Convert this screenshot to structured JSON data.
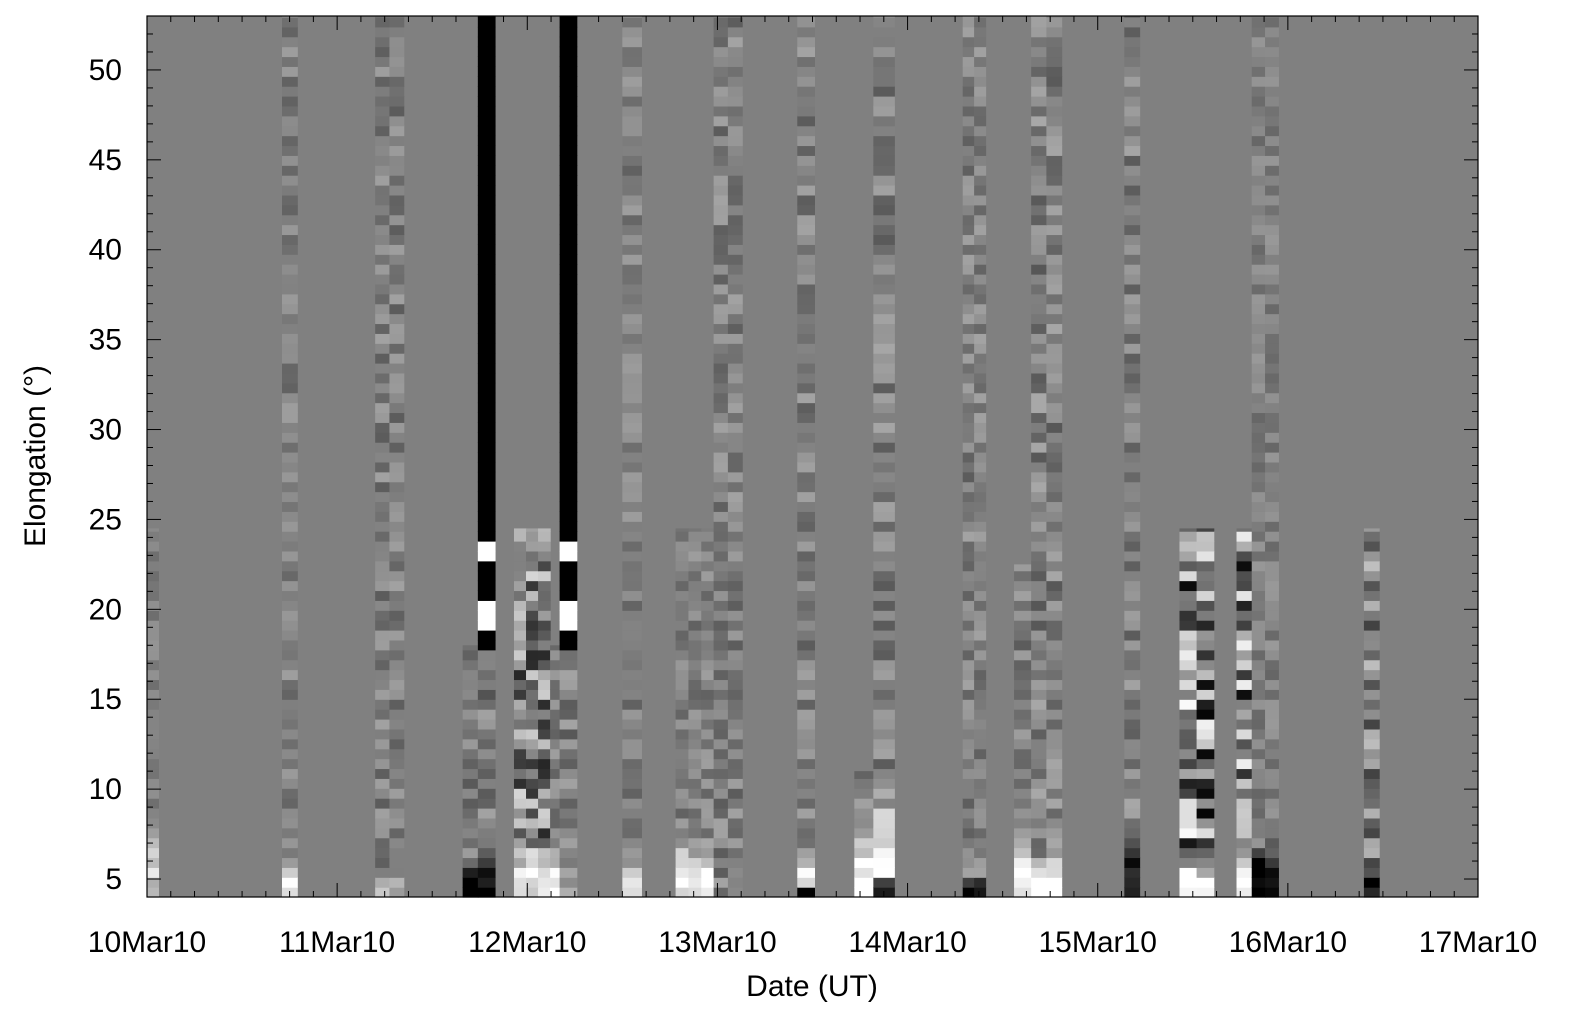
{
  "chart_data": {
    "type": "heatmap",
    "title": "",
    "xlabel": "Date (UT)",
    "ylabel": "Elongation (°)",
    "x_tick_labels": [
      "10Mar10",
      "11Mar10",
      "12Mar10",
      "13Mar10",
      "14Mar10",
      "15Mar10",
      "16Mar10",
      "17Mar10"
    ],
    "x_tick_values_days": [
      0,
      1,
      2,
      3,
      4,
      5,
      6,
      7
    ],
    "y_ticks": [
      5,
      10,
      15,
      20,
      25,
      30,
      35,
      40,
      45,
      50
    ],
    "xlim_days": [
      0,
      7
    ],
    "ylim": [
      4,
      53
    ],
    "grid": false,
    "colormap": "grayscale",
    "background_value": 0.5,
    "colors": {
      "background": "#808080",
      "frame": "#000000",
      "page": "#ffffff"
    },
    "image_columns": [
      {
        "x0": 0.0,
        "x1": 0.06,
        "yMax": 24.5,
        "amp": 0.08,
        "seed": 11,
        "low": [
          {
            "ymax": 8,
            "value": 0.8
          }
        ]
      },
      {
        "x0": 0.71,
        "x1": 0.79,
        "yMax": 53,
        "amp": 0.12,
        "seed": 23,
        "low": [
          {
            "ymax": 6,
            "value": 0.9
          }
        ]
      },
      {
        "x0": 1.2,
        "x1": 1.35,
        "yMax": 53,
        "amp": 0.14,
        "seed": 31,
        "low": [
          {
            "ymax": 5,
            "value": 0.7
          }
        ]
      },
      {
        "x0": 1.66,
        "x1": 1.74,
        "yMax": 18,
        "amp": 0.16,
        "seed": 41,
        "low": [
          {
            "ymax": 6,
            "value": 0.05
          }
        ]
      },
      {
        "x0": 1.74,
        "x1": 1.83,
        "yMax": 53,
        "amp": 0.0,
        "seed": 43,
        "base": 0.0,
        "bands": [
          {
            "y0": 17.5,
            "y1": 18.8,
            "value": 0.0
          },
          {
            "y0": 18.8,
            "y1": 20.5,
            "value": 1.0
          },
          {
            "y0": 20.5,
            "y1": 22.5,
            "value": 0.0
          },
          {
            "y0": 22.5,
            "y1": 23.5,
            "value": 1.0
          }
        ],
        "noiseBelow": 17.5,
        "low": [
          {
            "ymax": 6,
            "value": 0.0
          }
        ]
      },
      {
        "x0": 1.93,
        "x1": 2.12,
        "yMax": 24.5,
        "amp": 0.35,
        "seed": 53,
        "low": [
          {
            "ymax": 7,
            "value": 0.9
          }
        ]
      },
      {
        "x0": 2.12,
        "x1": 2.17,
        "yMax": 18,
        "amp": 0.12,
        "seed": 59,
        "low": [
          {
            "ymax": 7,
            "value": 0.9
          }
        ]
      },
      {
        "x0": 2.17,
        "x1": 2.26,
        "yMax": 53,
        "amp": 0.0,
        "seed": 61,
        "base": 0.0,
        "bands": [
          {
            "y0": 17.5,
            "y1": 18.8,
            "value": 0.0
          },
          {
            "y0": 18.8,
            "y1": 20.5,
            "value": 1.0
          },
          {
            "y0": 20.5,
            "y1": 22.5,
            "value": 0.0
          },
          {
            "y0": 22.5,
            "y1": 23.5,
            "value": 1.0
          }
        ],
        "noiseBelow": 17.5,
        "low": [
          {
            "ymax": 6,
            "value": 0.6
          }
        ]
      },
      {
        "x0": 2.5,
        "x1": 2.6,
        "yMax": 53,
        "amp": 0.12,
        "seed": 71,
        "low": [
          {
            "ymax": 6,
            "value": 0.95
          }
        ]
      },
      {
        "x0": 2.78,
        "x1": 3.05,
        "yMax": 24.5,
        "amp": 0.12,
        "seed": 73,
        "low": [
          {
            "ymax": 7,
            "value": 0.95
          }
        ]
      },
      {
        "x0": 2.98,
        "x1": 3.13,
        "yMax": 53,
        "amp": 0.14,
        "seed": 79
      },
      {
        "x0": 3.42,
        "x1": 3.51,
        "yMax": 53,
        "amp": 0.14,
        "seed": 83,
        "low": [
          {
            "ymax": 6.5,
            "value": 0.95
          },
          {
            "ymax": 4.5,
            "value": 0.0
          }
        ]
      },
      {
        "x0": 3.72,
        "x1": 3.82,
        "yMax": 11,
        "amp": 0.14,
        "seed": 89,
        "low": [
          {
            "ymax": 8,
            "value": 1.0
          }
        ]
      },
      {
        "x0": 3.82,
        "x1": 3.93,
        "yMax": 53,
        "amp": 0.15,
        "seed": 97,
        "low": [
          {
            "ymax": 10,
            "value": 0.95
          },
          {
            "ymax": 5,
            "value": 0.0
          }
        ]
      },
      {
        "x0": 4.29,
        "x1": 4.41,
        "yMax": 53,
        "amp": 0.14,
        "seed": 101,
        "low": [
          {
            "ymax": 5,
            "value": 0.1
          }
        ]
      },
      {
        "x0": 4.56,
        "x1": 4.65,
        "yMax": 22.5,
        "amp": 0.14,
        "seed": 103,
        "low": [
          {
            "ymax": 8,
            "value": 1.0
          }
        ]
      },
      {
        "x0": 4.65,
        "x1": 4.81,
        "yMax": 53,
        "amp": 0.16,
        "seed": 107,
        "low": [
          {
            "ymax": 6,
            "value": 1.0
          }
        ]
      },
      {
        "x0": 5.14,
        "x1": 5.22,
        "yMax": 53,
        "amp": 0.16,
        "seed": 109,
        "low": [
          {
            "ymax": 8,
            "value": 0.1
          }
        ]
      },
      {
        "x0": 5.43,
        "x1": 5.61,
        "yMax": 24.5,
        "amp": 0.48,
        "seed": 113,
        "low": [
          {
            "ymax": 6,
            "value": 1.0
          }
        ]
      },
      {
        "x0": 5.73,
        "x1": 5.81,
        "yMax": 24.5,
        "amp": 0.45,
        "seed": 127,
        "low": [
          {
            "ymax": 7,
            "value": 0.95
          }
        ]
      },
      {
        "x0": 5.81,
        "x1": 5.95,
        "yMax": 53,
        "amp": 0.1,
        "seed": 131,
        "low": [
          {
            "ymax": 7,
            "value": 0.0
          }
        ]
      },
      {
        "x0": 6.4,
        "x1": 6.48,
        "yMax": 24.5,
        "amp": 0.25,
        "seed": 137,
        "low": [
          {
            "ymax": 6,
            "value": 0.1
          }
        ]
      }
    ]
  }
}
